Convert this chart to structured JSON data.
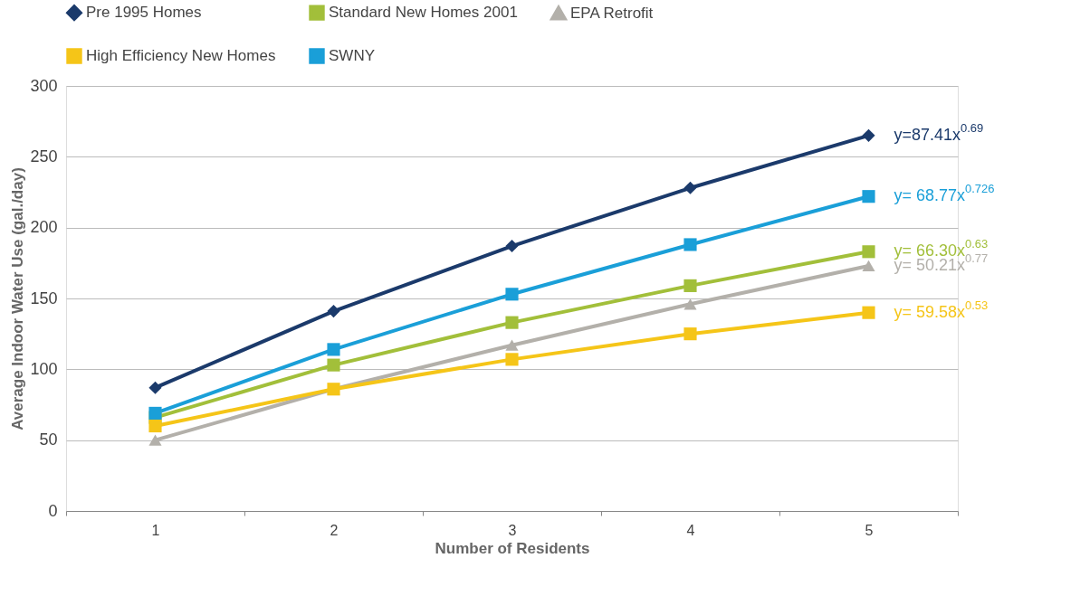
{
  "chart_data": {
    "type": "line",
    "xlabel": "Number of Residents",
    "ylabel": "Average Indoor Water Use (gal./day)",
    "categories": [
      "1",
      "2",
      "3",
      "4",
      "5"
    ],
    "series": [
      {
        "name": "Pre 1995 Homes",
        "color": "#1b3a6b",
        "marker": "diamond",
        "values": [
          87,
          141,
          187,
          228,
          265
        ]
      },
      {
        "name": "Standard New Homes 2001",
        "color": "#a2bf3a",
        "marker": "square",
        "values": [
          66,
          103,
          133,
          159,
          183
        ]
      },
      {
        "name": "EPA Retrofit",
        "color": "#b3b0aa",
        "marker": "triangle",
        "values": [
          50,
          86,
          117,
          146,
          173
        ]
      },
      {
        "name": "High Efficiency New Homes",
        "color": "#f5c518",
        "marker": "square",
        "values": [
          60,
          86,
          107,
          125,
          140
        ]
      },
      {
        "name": "SWNY",
        "color": "#1a9fd8",
        "marker": "square",
        "values": [
          69,
          114,
          153,
          188,
          222
        ]
      }
    ],
    "annotations": [
      {
        "text": "y=87.41x$^{0.69}$",
        "x": "5",
        "y": 265
      },
      {
        "text": "y= 66.30x$^{0.63}$",
        "x": "5",
        "y": 183
      },
      {
        "text": "y= 50.21x$^{0.77}$",
        "x": "5",
        "y": 173
      },
      {
        "text": "y= 59.58x$^{0.53}$",
        "x": "5",
        "y": 140
      },
      {
        "text": "y= 68.77x$^{0.726}$",
        "x": "5",
        "y": 222
      }
    ],
    "ylim": [
      0,
      300
    ],
    "yticks": [
      0,
      50,
      100,
      150,
      200,
      250,
      300
    ],
    "grid": "y",
    "legend": "top left",
    "line_style": "solid"
  }
}
